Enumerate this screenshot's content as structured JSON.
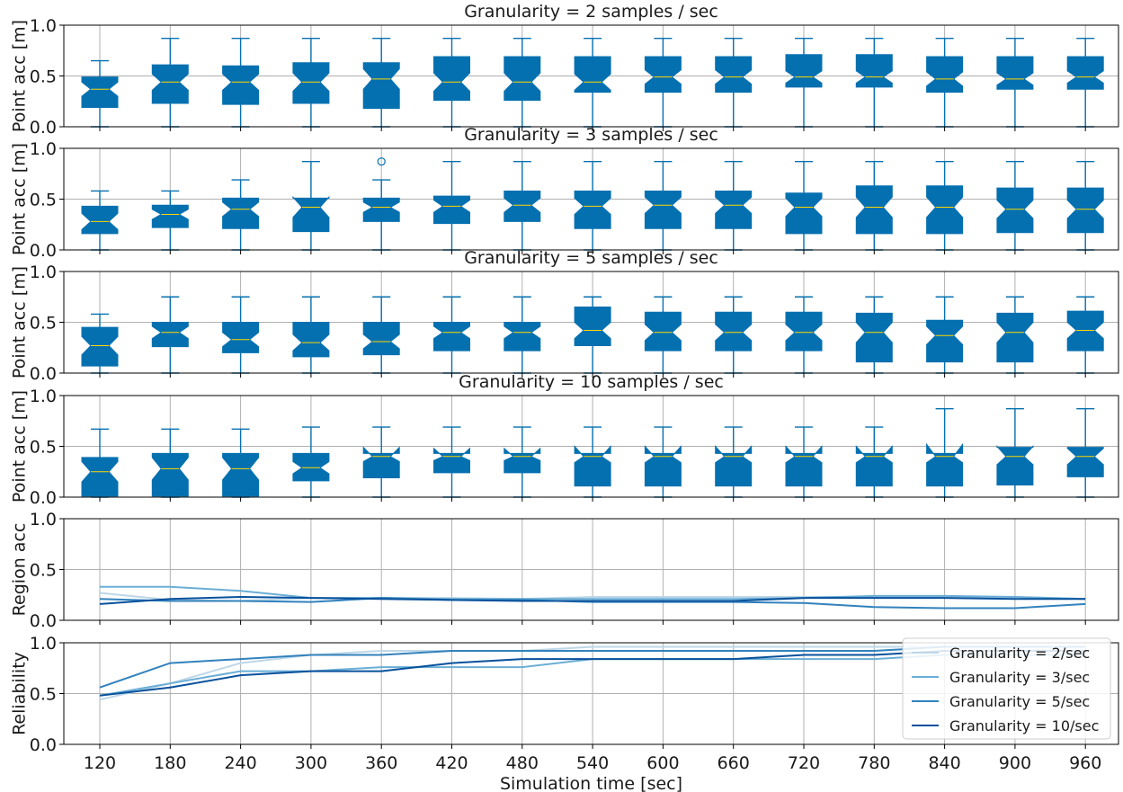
{
  "chart_data": [
    {
      "type": "box",
      "title": "Granularity = 2 samples / sec",
      "ylabel": "Point acc [m]",
      "ylim": [
        0,
        1
      ],
      "yticks": [
        "0.0",
        "0.5",
        "1.0"
      ],
      "categories": [
        120,
        180,
        240,
        300,
        360,
        420,
        480,
        540,
        600,
        660,
        720,
        780,
        840,
        900,
        960
      ],
      "boxes": [
        {
          "whislo": 0.0,
          "q1": 0.19,
          "med": 0.37,
          "q3": 0.49,
          "whishi": 0.65,
          "ci": [
            0.3,
            0.44
          ],
          "fliers": []
        },
        {
          "whislo": 0.0,
          "q1": 0.23,
          "med": 0.44,
          "q3": 0.61,
          "whishi": 0.87,
          "ci": [
            0.36,
            0.52
          ],
          "fliers": []
        },
        {
          "whislo": 0.0,
          "q1": 0.22,
          "med": 0.44,
          "q3": 0.6,
          "whishi": 0.87,
          "ci": [
            0.36,
            0.52
          ],
          "fliers": []
        },
        {
          "whislo": 0.0,
          "q1": 0.23,
          "med": 0.44,
          "q3": 0.63,
          "whishi": 0.87,
          "ci": [
            0.35,
            0.53
          ],
          "fliers": []
        },
        {
          "whislo": 0.0,
          "q1": 0.18,
          "med": 0.47,
          "q3": 0.63,
          "whishi": 0.87,
          "ci": [
            0.37,
            0.57
          ],
          "fliers": []
        },
        {
          "whislo": 0.0,
          "q1": 0.26,
          "med": 0.44,
          "q3": 0.69,
          "whishi": 0.87,
          "ci": [
            0.35,
            0.53
          ],
          "fliers": []
        },
        {
          "whislo": 0.0,
          "q1": 0.26,
          "med": 0.44,
          "q3": 0.69,
          "whishi": 0.87,
          "ci": [
            0.35,
            0.53
          ],
          "fliers": []
        },
        {
          "whislo": 0.0,
          "q1": 0.34,
          "med": 0.44,
          "q3": 0.69,
          "whishi": 0.87,
          "ci": [
            0.36,
            0.52
          ],
          "fliers": []
        },
        {
          "whislo": 0.0,
          "q1": 0.34,
          "med": 0.49,
          "q3": 0.69,
          "whishi": 0.87,
          "ci": [
            0.42,
            0.56
          ],
          "fliers": []
        },
        {
          "whislo": 0.0,
          "q1": 0.34,
          "med": 0.49,
          "q3": 0.69,
          "whishi": 0.87,
          "ci": [
            0.42,
            0.56
          ],
          "fliers": []
        },
        {
          "whislo": 0.0,
          "q1": 0.39,
          "med": 0.49,
          "q3": 0.71,
          "whishi": 0.87,
          "ci": [
            0.43,
            0.55
          ],
          "fliers": []
        },
        {
          "whislo": 0.0,
          "q1": 0.39,
          "med": 0.49,
          "q3": 0.71,
          "whishi": 0.87,
          "ci": [
            0.43,
            0.55
          ],
          "fliers": []
        },
        {
          "whislo": 0.0,
          "q1": 0.34,
          "med": 0.47,
          "q3": 0.69,
          "whishi": 0.87,
          "ci": [
            0.4,
            0.54
          ],
          "fliers": []
        },
        {
          "whislo": 0.0,
          "q1": 0.37,
          "med": 0.47,
          "q3": 0.69,
          "whishi": 0.87,
          "ci": [
            0.41,
            0.53
          ],
          "fliers": []
        },
        {
          "whislo": 0.0,
          "q1": 0.37,
          "med": 0.49,
          "q3": 0.69,
          "whishi": 0.87,
          "ci": [
            0.43,
            0.55
          ],
          "fliers": []
        }
      ]
    },
    {
      "type": "box",
      "title": "Granularity = 3 samples / sec",
      "ylabel": "Point acc [m]",
      "ylim": [
        0,
        1
      ],
      "yticks": [
        "0.0",
        "0.5",
        "1.0"
      ],
      "categories": [
        120,
        180,
        240,
        300,
        360,
        420,
        480,
        540,
        600,
        660,
        720,
        780,
        840,
        900,
        960
      ],
      "boxes": [
        {
          "whislo": 0.0,
          "q1": 0.16,
          "med": 0.28,
          "q3": 0.43,
          "whishi": 0.58,
          "ci": [
            0.2,
            0.36
          ],
          "fliers": []
        },
        {
          "whislo": 0.0,
          "q1": 0.22,
          "med": 0.35,
          "q3": 0.44,
          "whishi": 0.58,
          "ci": [
            0.3,
            0.4
          ],
          "fliers": []
        },
        {
          "whislo": 0.0,
          "q1": 0.21,
          "med": 0.4,
          "q3": 0.51,
          "whishi": 0.69,
          "ci": [
            0.33,
            0.47
          ],
          "fliers": []
        },
        {
          "whislo": 0.0,
          "q1": 0.18,
          "med": 0.42,
          "q3": 0.51,
          "whishi": 0.87,
          "ci": [
            0.32,
            0.52
          ],
          "fliers": []
        },
        {
          "whislo": 0.0,
          "q1": 0.28,
          "med": 0.42,
          "q3": 0.51,
          "whishi": 0.69,
          "ci": [
            0.37,
            0.47
          ],
          "fliers": [
            0.87
          ]
        },
        {
          "whislo": 0.0,
          "q1": 0.26,
          "med": 0.43,
          "q3": 0.53,
          "whishi": 0.87,
          "ci": [
            0.37,
            0.49
          ],
          "fliers": []
        },
        {
          "whislo": 0.0,
          "q1": 0.28,
          "med": 0.44,
          "q3": 0.58,
          "whishi": 0.87,
          "ci": [
            0.37,
            0.51
          ],
          "fliers": []
        },
        {
          "whislo": 0.0,
          "q1": 0.21,
          "med": 0.43,
          "q3": 0.58,
          "whishi": 0.87,
          "ci": [
            0.35,
            0.51
          ],
          "fliers": []
        },
        {
          "whislo": 0.0,
          "q1": 0.21,
          "med": 0.44,
          "q3": 0.58,
          "whishi": 0.87,
          "ci": [
            0.36,
            0.52
          ],
          "fliers": []
        },
        {
          "whislo": 0.0,
          "q1": 0.21,
          "med": 0.44,
          "q3": 0.58,
          "whishi": 0.87,
          "ci": [
            0.36,
            0.52
          ],
          "fliers": []
        },
        {
          "whislo": 0.0,
          "q1": 0.16,
          "med": 0.42,
          "q3": 0.56,
          "whishi": 0.87,
          "ci": [
            0.33,
            0.51
          ],
          "fliers": []
        },
        {
          "whislo": 0.0,
          "q1": 0.16,
          "med": 0.42,
          "q3": 0.63,
          "whishi": 0.87,
          "ci": [
            0.32,
            0.52
          ],
          "fliers": []
        },
        {
          "whislo": 0.0,
          "q1": 0.16,
          "med": 0.42,
          "q3": 0.63,
          "whishi": 0.87,
          "ci": [
            0.32,
            0.52
          ],
          "fliers": []
        },
        {
          "whislo": 0.0,
          "q1": 0.17,
          "med": 0.4,
          "q3": 0.61,
          "whishi": 0.87,
          "ci": [
            0.31,
            0.49
          ],
          "fliers": []
        },
        {
          "whislo": 0.0,
          "q1": 0.17,
          "med": 0.4,
          "q3": 0.61,
          "whishi": 0.87,
          "ci": [
            0.31,
            0.49
          ],
          "fliers": []
        }
      ]
    },
    {
      "type": "box",
      "title": "Granularity = 5 samples / sec",
      "ylabel": "Point acc [m]",
      "ylim": [
        0,
        1
      ],
      "yticks": [
        "0.0",
        "0.5",
        "1.0"
      ],
      "categories": [
        120,
        180,
        240,
        300,
        360,
        420,
        480,
        540,
        600,
        660,
        720,
        780,
        840,
        900,
        960
      ],
      "boxes": [
        {
          "whislo": 0.0,
          "q1": 0.07,
          "med": 0.27,
          "q3": 0.45,
          "whishi": 0.58,
          "ci": [
            0.18,
            0.36
          ],
          "fliers": []
        },
        {
          "whislo": 0.0,
          "q1": 0.26,
          "med": 0.4,
          "q3": 0.5,
          "whishi": 0.75,
          "ci": [
            0.34,
            0.46
          ],
          "fliers": []
        },
        {
          "whislo": 0.0,
          "q1": 0.2,
          "med": 0.33,
          "q3": 0.5,
          "whishi": 0.75,
          "ci": [
            0.26,
            0.4
          ],
          "fliers": []
        },
        {
          "whislo": 0.0,
          "q1": 0.16,
          "med": 0.3,
          "q3": 0.5,
          "whishi": 0.75,
          "ci": [
            0.22,
            0.38
          ],
          "fliers": []
        },
        {
          "whislo": 0.0,
          "q1": 0.18,
          "med": 0.31,
          "q3": 0.5,
          "whishi": 0.75,
          "ci": [
            0.24,
            0.38
          ],
          "fliers": []
        },
        {
          "whislo": 0.0,
          "q1": 0.22,
          "med": 0.4,
          "q3": 0.5,
          "whishi": 0.75,
          "ci": [
            0.34,
            0.46
          ],
          "fliers": []
        },
        {
          "whislo": 0.0,
          "q1": 0.22,
          "med": 0.4,
          "q3": 0.5,
          "whishi": 0.75,
          "ci": [
            0.34,
            0.46
          ],
          "fliers": []
        },
        {
          "whislo": 0.0,
          "q1": 0.27,
          "med": 0.42,
          "q3": 0.65,
          "whishi": 0.75,
          "ci": [
            0.34,
            0.5
          ],
          "fliers": []
        },
        {
          "whislo": 0.0,
          "q1": 0.22,
          "med": 0.4,
          "q3": 0.6,
          "whishi": 0.75,
          "ci": [
            0.32,
            0.48
          ],
          "fliers": []
        },
        {
          "whislo": 0.0,
          "q1": 0.22,
          "med": 0.4,
          "q3": 0.6,
          "whishi": 0.75,
          "ci": [
            0.32,
            0.48
          ],
          "fliers": []
        },
        {
          "whislo": 0.0,
          "q1": 0.22,
          "med": 0.4,
          "q3": 0.6,
          "whishi": 0.75,
          "ci": [
            0.32,
            0.48
          ],
          "fliers": []
        },
        {
          "whislo": 0.0,
          "q1": 0.11,
          "med": 0.4,
          "q3": 0.59,
          "whishi": 0.75,
          "ci": [
            0.3,
            0.5
          ],
          "fliers": []
        },
        {
          "whislo": 0.0,
          "q1": 0.11,
          "med": 0.37,
          "q3": 0.52,
          "whishi": 0.75,
          "ci": [
            0.28,
            0.46
          ],
          "fliers": []
        },
        {
          "whislo": 0.0,
          "q1": 0.11,
          "med": 0.4,
          "q3": 0.59,
          "whishi": 0.75,
          "ci": [
            0.3,
            0.5
          ],
          "fliers": []
        },
        {
          "whislo": 0.0,
          "q1": 0.22,
          "med": 0.42,
          "q3": 0.61,
          "whishi": 0.75,
          "ci": [
            0.34,
            0.5
          ],
          "fliers": []
        }
      ]
    },
    {
      "type": "box",
      "title": "Granularity = 10 samples / sec",
      "ylabel": "Point acc [m]",
      "ylim": [
        0,
        1
      ],
      "yticks": [
        "0.0",
        "0.5",
        "1.0"
      ],
      "categories": [
        120,
        180,
        240,
        300,
        360,
        420,
        480,
        540,
        600,
        660,
        720,
        780,
        840,
        900,
        960
      ],
      "boxes": [
        {
          "whislo": 0.0,
          "q1": 0.01,
          "med": 0.25,
          "q3": 0.39,
          "whishi": 0.67,
          "ci": [
            0.15,
            0.35
          ],
          "fliers": []
        },
        {
          "whislo": 0.0,
          "q1": 0.01,
          "med": 0.28,
          "q3": 0.43,
          "whishi": 0.67,
          "ci": [
            0.17,
            0.39
          ],
          "fliers": []
        },
        {
          "whislo": 0.0,
          "q1": 0.01,
          "med": 0.28,
          "q3": 0.43,
          "whishi": 0.67,
          "ci": [
            0.17,
            0.39
          ],
          "fliers": []
        },
        {
          "whislo": 0.0,
          "q1": 0.16,
          "med": 0.29,
          "q3": 0.43,
          "whishi": 0.69,
          "ci": [
            0.23,
            0.35
          ],
          "fliers": []
        },
        {
          "whislo": 0.0,
          "q1": 0.19,
          "med": 0.4,
          "q3": 0.43,
          "whishi": 0.69,
          "ci": [
            0.35,
            0.49
          ],
          "fliers": []
        },
        {
          "whislo": 0.0,
          "q1": 0.24,
          "med": 0.4,
          "q3": 0.43,
          "whishi": 0.69,
          "ci": [
            0.36,
            0.48
          ],
          "fliers": []
        },
        {
          "whislo": 0.0,
          "q1": 0.24,
          "med": 0.4,
          "q3": 0.43,
          "whishi": 0.69,
          "ci": [
            0.36,
            0.48
          ],
          "fliers": []
        },
        {
          "whislo": 0.0,
          "q1": 0.11,
          "med": 0.4,
          "q3": 0.43,
          "whishi": 0.69,
          "ci": [
            0.34,
            0.5
          ],
          "fliers": []
        },
        {
          "whislo": 0.0,
          "q1": 0.11,
          "med": 0.4,
          "q3": 0.43,
          "whishi": 0.69,
          "ci": [
            0.34,
            0.5
          ],
          "fliers": []
        },
        {
          "whislo": 0.0,
          "q1": 0.11,
          "med": 0.4,
          "q3": 0.43,
          "whishi": 0.69,
          "ci": [
            0.34,
            0.5
          ],
          "fliers": []
        },
        {
          "whislo": 0.0,
          "q1": 0.11,
          "med": 0.4,
          "q3": 0.43,
          "whishi": 0.69,
          "ci": [
            0.34,
            0.5
          ],
          "fliers": []
        },
        {
          "whislo": 0.0,
          "q1": 0.11,
          "med": 0.4,
          "q3": 0.43,
          "whishi": 0.69,
          "ci": [
            0.34,
            0.5
          ],
          "fliers": []
        },
        {
          "whislo": 0.0,
          "q1": 0.11,
          "med": 0.4,
          "q3": 0.43,
          "whishi": 0.87,
          "ci": [
            0.34,
            0.52
          ],
          "fliers": []
        },
        {
          "whislo": 0.0,
          "q1": 0.12,
          "med": 0.4,
          "q3": 0.49,
          "whishi": 0.87,
          "ci": [
            0.32,
            0.5
          ],
          "fliers": []
        },
        {
          "whislo": 0.0,
          "q1": 0.2,
          "med": 0.4,
          "q3": 0.49,
          "whishi": 0.87,
          "ci": [
            0.32,
            0.48
          ],
          "fliers": []
        }
      ]
    },
    {
      "type": "line",
      "title": "",
      "ylabel": "Region acc",
      "ylim": [
        0,
        1
      ],
      "yticks": [
        "0.0",
        "0.5",
        "1.0"
      ],
      "x": [
        120,
        180,
        240,
        300,
        360,
        420,
        480,
        540,
        600,
        660,
        720,
        780,
        840,
        900,
        960
      ],
      "series": [
        {
          "name": "Granularity = 2/sec",
          "values": [
            0.27,
            0.2,
            0.19,
            0.22,
            0.22,
            0.22,
            0.21,
            0.23,
            0.23,
            0.23,
            0.23,
            0.23,
            0.23,
            0.23,
            0.21
          ]
        },
        {
          "name": "Granularity = 3/sec",
          "values": [
            0.33,
            0.33,
            0.29,
            0.22,
            0.22,
            0.21,
            0.21,
            0.21,
            0.21,
            0.21,
            0.22,
            0.24,
            0.24,
            0.23,
            0.21
          ]
        },
        {
          "name": "Granularity = 5/sec",
          "values": [
            0.21,
            0.19,
            0.19,
            0.18,
            0.22,
            0.2,
            0.2,
            0.18,
            0.18,
            0.18,
            0.17,
            0.13,
            0.12,
            0.12,
            0.16
          ]
        },
        {
          "name": "Granularity = 10/sec",
          "values": [
            0.16,
            0.21,
            0.23,
            0.22,
            0.21,
            0.2,
            0.19,
            0.19,
            0.19,
            0.19,
            0.22,
            0.22,
            0.22,
            0.21,
            0.21
          ]
        }
      ]
    },
    {
      "type": "line",
      "title": "",
      "ylabel": "Reliability",
      "xlabel": "Simulation time [sec]",
      "ylim": [
        0,
        1
      ],
      "yticks": [
        "0.0",
        "0.5",
        "1.0"
      ],
      "x": [
        120,
        180,
        240,
        300,
        360,
        420,
        480,
        540,
        600,
        660,
        720,
        780,
        840,
        900,
        960
      ],
      "xticks": [
        "120",
        "180",
        "240",
        "300",
        "360",
        "420",
        "480",
        "540",
        "600",
        "660",
        "720",
        "780",
        "840",
        "900",
        "960"
      ],
      "legend_position": "bottom-right",
      "series": [
        {
          "name": "Granularity = 2/sec",
          "values": [
            0.44,
            0.6,
            0.8,
            0.88,
            0.92,
            0.92,
            0.92,
            0.96,
            0.96,
            0.96,
            0.96,
            0.96,
            0.96,
            0.96,
            0.96
          ]
        },
        {
          "name": "Granularity = 3/sec",
          "values": [
            0.48,
            0.6,
            0.72,
            0.72,
            0.76,
            0.76,
            0.76,
            0.84,
            0.84,
            0.84,
            0.84,
            0.84,
            0.88,
            0.88,
            0.88
          ]
        },
        {
          "name": "Granularity = 5/sec",
          "values": [
            0.56,
            0.8,
            0.84,
            0.88,
            0.88,
            0.92,
            0.92,
            0.92,
            0.92,
            0.92,
            0.92,
            0.92,
            0.96,
            0.96,
            0.96
          ]
        },
        {
          "name": "Granularity = 10/sec",
          "values": [
            0.48,
            0.56,
            0.68,
            0.72,
            0.72,
            0.8,
            0.84,
            0.84,
            0.84,
            0.84,
            0.88,
            0.88,
            0.92,
            0.92,
            0.92
          ]
        }
      ]
    }
  ],
  "colors": {
    "box_fill": "#0570b0",
    "median": "#ffd700",
    "series": [
      "#bdd7e7",
      "#6baed6",
      "#3182bd",
      "#08519c"
    ],
    "grid": "#b0b0b0"
  }
}
